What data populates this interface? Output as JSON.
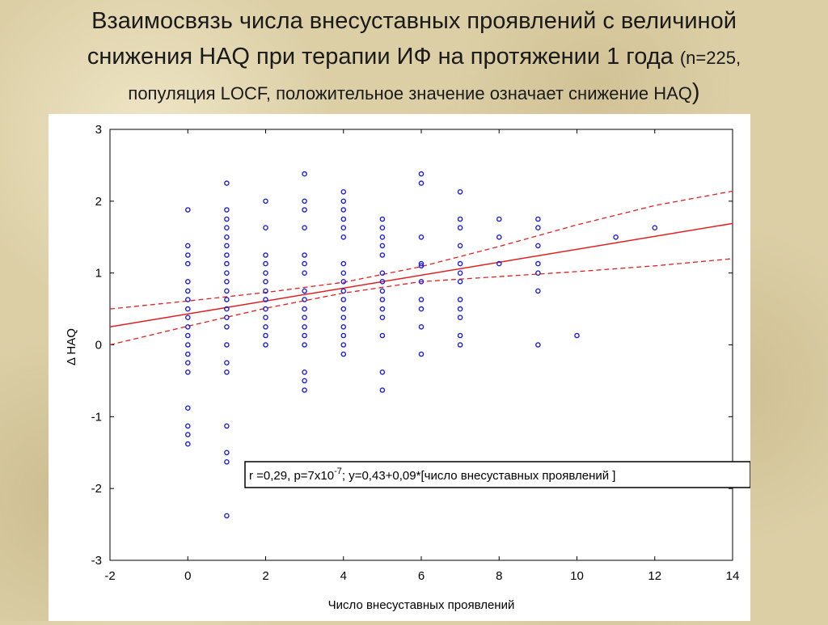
{
  "title": {
    "line1": "Взаимосвязь числа внесуставных проявлений с величиной",
    "line2_main": "снижения HAQ при терапии ИФ на протяжении 1 года",
    "line2_small": "(n=225,",
    "line3_main": "популяция LOCF, положительное значение  означает снижение HAQ",
    "line3_paren": ")"
  },
  "chart_data": {
    "type": "scatter",
    "xlabel": "Число внесуставных проявлений",
    "ylabel": "Δ HAQ",
    "xlim": [
      -2,
      14
    ],
    "ylim": [
      -3,
      3
    ],
    "x_ticks": [
      "-2",
      "0",
      "2",
      "4",
      "6",
      "8",
      "10",
      "12",
      "14"
    ],
    "y_ticks": [
      "3",
      "2",
      "1",
      "0",
      "-1",
      "-2",
      "-3"
    ],
    "grid": false,
    "point_color": "#1f1fd6",
    "line_color": "#e02020",
    "annotation": {
      "prefix": "r =0,29, p=7x10",
      "exp": "-7",
      "suffix": "; y=0,43+0,09*[число внесуставных проявлений ]"
    },
    "regression": {
      "intercept": 0.43,
      "slope": 0.09
    },
    "confidence_band": {
      "upper": [
        [
          -2,
          0.5
        ],
        [
          0,
          0.61
        ],
        [
          2,
          0.73
        ],
        [
          4,
          0.87
        ],
        [
          6,
          1.09
        ],
        [
          8,
          1.37
        ],
        [
          10,
          1.67
        ],
        [
          12,
          1.94
        ],
        [
          14,
          2.14
        ]
      ],
      "lower": [
        [
          -2,
          0.0
        ],
        [
          0,
          0.26
        ],
        [
          2,
          0.51
        ],
        [
          4,
          0.72
        ],
        [
          6,
          0.88
        ],
        [
          8,
          0.95
        ],
        [
          10,
          1.02
        ],
        [
          12,
          1.1
        ],
        [
          14,
          1.2
        ]
      ]
    },
    "points": [
      [
        0,
        1.88
      ],
      [
        0,
        1.38
      ],
      [
        0,
        1.25
      ],
      [
        0,
        1.13
      ],
      [
        0,
        0.88
      ],
      [
        0,
        0.75
      ],
      [
        0,
        0.63
      ],
      [
        0,
        0.5
      ],
      [
        0,
        0.38
      ],
      [
        0,
        0.25
      ],
      [
        0,
        0.13
      ],
      [
        0,
        0.0
      ],
      [
        0,
        -0.13
      ],
      [
        0,
        -0.25
      ],
      [
        0,
        -0.38
      ],
      [
        0,
        -0.88
      ],
      [
        0,
        -1.13
      ],
      [
        0,
        -1.25
      ],
      [
        0,
        -1.38
      ],
      [
        1,
        2.25
      ],
      [
        1,
        1.88
      ],
      [
        1,
        1.75
      ],
      [
        1,
        1.63
      ],
      [
        1,
        1.5
      ],
      [
        1,
        1.38
      ],
      [
        1,
        1.25
      ],
      [
        1,
        1.13
      ],
      [
        1,
        1.0
      ],
      [
        1,
        0.88
      ],
      [
        1,
        0.75
      ],
      [
        1,
        0.63
      ],
      [
        1,
        0.5
      ],
      [
        1,
        0.38
      ],
      [
        1,
        0.25
      ],
      [
        1,
        0.0
      ],
      [
        1,
        -0.25
      ],
      [
        1,
        -0.38
      ],
      [
        1,
        -1.13
      ],
      [
        1,
        -1.5
      ],
      [
        1,
        -1.63
      ],
      [
        1,
        -2.38
      ],
      [
        2,
        2.0
      ],
      [
        2,
        1.63
      ],
      [
        2,
        1.25
      ],
      [
        2,
        1.13
      ],
      [
        2,
        1.0
      ],
      [
        2,
        0.88
      ],
      [
        2,
        0.75
      ],
      [
        2,
        0.63
      ],
      [
        2,
        0.5
      ],
      [
        2,
        0.38
      ],
      [
        2,
        0.25
      ],
      [
        2,
        0.13
      ],
      [
        2,
        0.0
      ],
      [
        3,
        2.38
      ],
      [
        3,
        2.0
      ],
      [
        3,
        1.88
      ],
      [
        3,
        1.63
      ],
      [
        3,
        1.25
      ],
      [
        3,
        1.13
      ],
      [
        3,
        1.0
      ],
      [
        3,
        0.75
      ],
      [
        3,
        0.63
      ],
      [
        3,
        0.5
      ],
      [
        3,
        0.38
      ],
      [
        3,
        0.25
      ],
      [
        3,
        0.13
      ],
      [
        3,
        0.0
      ],
      [
        3,
        -0.38
      ],
      [
        3,
        -0.5
      ],
      [
        3,
        -0.63
      ],
      [
        4,
        2.13
      ],
      [
        4,
        2.0
      ],
      [
        4,
        1.88
      ],
      [
        4,
        1.75
      ],
      [
        4,
        1.63
      ],
      [
        4,
        1.5
      ],
      [
        4,
        1.13
      ],
      [
        4,
        1.0
      ],
      [
        4,
        0.88
      ],
      [
        4,
        0.75
      ],
      [
        4,
        0.63
      ],
      [
        4,
        0.5
      ],
      [
        4,
        0.38
      ],
      [
        4,
        0.25
      ],
      [
        4,
        0.13
      ],
      [
        4,
        0.0
      ],
      [
        4,
        -0.13
      ],
      [
        5,
        1.75
      ],
      [
        5,
        1.63
      ],
      [
        5,
        1.5
      ],
      [
        5,
        1.38
      ],
      [
        5,
        1.25
      ],
      [
        5,
        1.0
      ],
      [
        5,
        0.88
      ],
      [
        5,
        0.75
      ],
      [
        5,
        0.63
      ],
      [
        5,
        0.5
      ],
      [
        5,
        0.38
      ],
      [
        5,
        0.13
      ],
      [
        5,
        -0.38
      ],
      [
        5,
        -0.63
      ],
      [
        6,
        2.38
      ],
      [
        6,
        2.25
      ],
      [
        6,
        1.5
      ],
      [
        6,
        1.13
      ],
      [
        6,
        1.1
      ],
      [
        6,
        0.88
      ],
      [
        6,
        0.63
      ],
      [
        6,
        0.5
      ],
      [
        6,
        0.25
      ],
      [
        6,
        -0.13
      ],
      [
        7,
        2.13
      ],
      [
        7,
        1.75
      ],
      [
        7,
        1.63
      ],
      [
        7,
        1.38
      ],
      [
        7,
        1.13
      ],
      [
        7,
        1.0
      ],
      [
        7,
        0.88
      ],
      [
        7,
        0.63
      ],
      [
        7,
        0.5
      ],
      [
        7,
        0.38
      ],
      [
        7,
        0.13
      ],
      [
        7,
        0.0
      ],
      [
        8,
        1.75
      ],
      [
        8,
        1.5
      ],
      [
        8,
        1.13
      ],
      [
        9,
        1.75
      ],
      [
        9,
        1.63
      ],
      [
        9,
        1.38
      ],
      [
        9,
        1.13
      ],
      [
        9,
        1.0
      ],
      [
        9,
        0.75
      ],
      [
        9,
        0.0
      ],
      [
        10,
        0.13
      ],
      [
        11,
        1.5
      ],
      [
        12,
        1.63
      ]
    ]
  }
}
